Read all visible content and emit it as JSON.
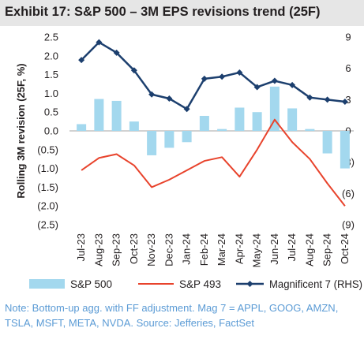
{
  "title": "Exhibit 17: S&P 500 – 3M EPS revisions trend (25F)",
  "note": "Note: Bottom-up agg. with FF adjustment. Mag 7 = APPL, GOOG, AMZN, TSLA, MSFT, META, NVDA. Source: Jefferies, FactSet",
  "colors": {
    "sp500": "#a3d8ee",
    "sp493": "#e8432c",
    "mag7": "#1c3f6e",
    "title_bg": "#e6e6e6",
    "note": "#5b9bd5"
  },
  "chart_data": {
    "type": "bar+line",
    "categories": [
      "Jul-23",
      "Aug-23",
      "Sep-23",
      "Oct-23",
      "Nov-23",
      "Dec-23",
      "Jan-24",
      "Feb-24",
      "Mar-24",
      "Apr-24",
      "May-24",
      "Jun-24",
      "Jul-24",
      "Aug-24",
      "Sep-24",
      "Oct-24"
    ],
    "ylabel": "Rolling 3M revision (25F, %)",
    "y_left": {
      "lim": [
        -2.5,
        2.5
      ],
      "tick_values": [
        2.5,
        2.0,
        1.5,
        1.0,
        0.5,
        0.0,
        -0.5,
        -1.0,
        -1.5,
        -2.0,
        -2.5
      ],
      "tick_labels": [
        "2.5",
        "2.0",
        "1.5",
        "1.0",
        "0.5",
        "0.0",
        "(0.5)",
        "(1.0)",
        "(1.5)",
        "(2.0)",
        "(2.5)"
      ]
    },
    "y_right": {
      "lim": [
        -9,
        9
      ],
      "tick_values": [
        9,
        6,
        3,
        0,
        -3,
        -6,
        -9
      ],
      "tick_labels": [
        "9",
        "6",
        "3",
        "0",
        "(3)",
        "(6)",
        "(9)"
      ]
    },
    "grid": false,
    "legend_position": "bottom",
    "series": [
      {
        "name": "S&P 500",
        "type": "bar",
        "axis": "left",
        "values": [
          0.18,
          0.85,
          0.8,
          0.25,
          -0.65,
          -0.45,
          -0.3,
          0.4,
          0.05,
          0.62,
          0.5,
          1.18,
          0.6,
          0.05,
          -0.6,
          -1.0
        ]
      },
      {
        "name": "S&P 493",
        "type": "line",
        "axis": "left",
        "values": [
          -1.05,
          -0.72,
          -0.62,
          -0.92,
          -1.5,
          -1.3,
          -1.05,
          -0.8,
          -0.7,
          -1.22,
          -0.5,
          0.3,
          -0.3,
          -0.75,
          -1.4,
          -2.0
        ]
      },
      {
        "name": "Magnificent 7 (RHS)",
        "type": "line",
        "axis": "right",
        "values": [
          6.8,
          8.5,
          7.5,
          5.8,
          3.5,
          3.1,
          2.1,
          5.0,
          5.2,
          5.6,
          4.2,
          4.8,
          4.4,
          3.2,
          3.0,
          2.8
        ]
      }
    ]
  }
}
